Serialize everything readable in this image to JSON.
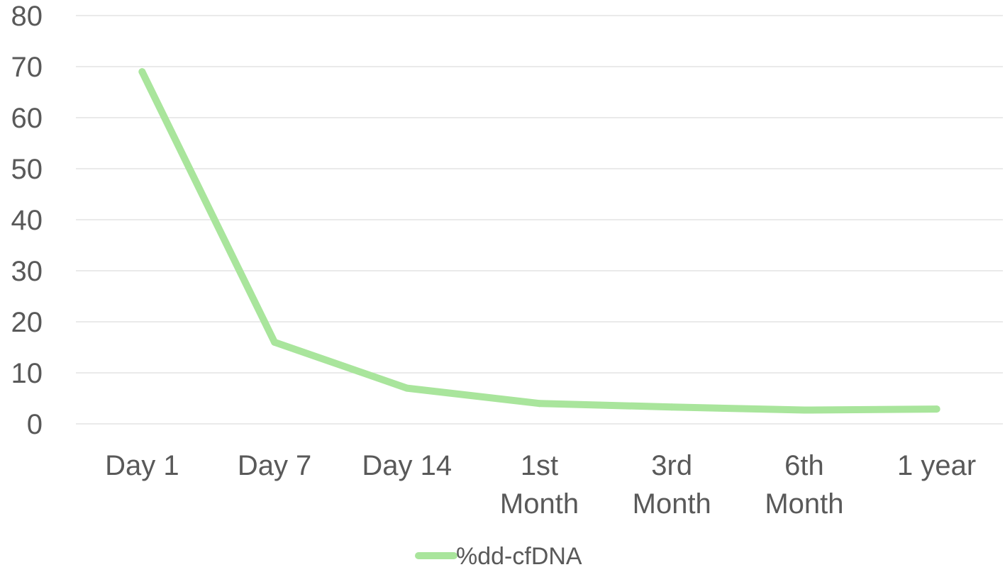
{
  "chart_data": {
    "type": "line",
    "categories": [
      [
        "Day 1"
      ],
      [
        "Day 7"
      ],
      [
        "Day 14"
      ],
      [
        "1st",
        "Month"
      ],
      [
        "3rd",
        "Month"
      ],
      [
        "6th",
        "Month"
      ],
      [
        "1 year"
      ]
    ],
    "series": [
      {
        "name": "%dd-cfDNA",
        "values": [
          69,
          16,
          7,
          4,
          3.3,
          2.7,
          2.9
        ],
        "color": "#a9e59c"
      }
    ],
    "ylim": [
      0,
      80
    ],
    "yticks": [
      0,
      10,
      20,
      30,
      40,
      50,
      60,
      70,
      80
    ],
    "grid": true,
    "gridColor": "#e3e3e3",
    "legend": "bottom"
  }
}
